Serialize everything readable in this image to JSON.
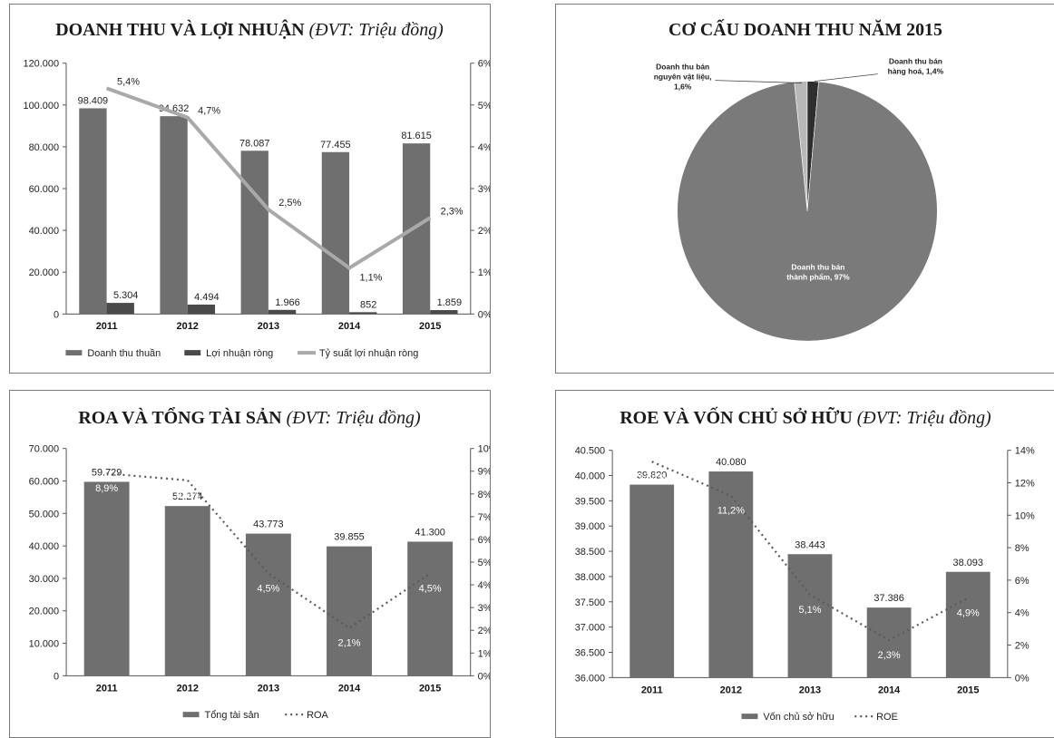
{
  "colors": {
    "bar_main": "#6f6f6f",
    "bar_secondary": "#4a4a4a",
    "line_light": "#a9a9a9",
    "dotted": "#5a5a5a",
    "pie_main": "#7a7a7a",
    "pie_slice1": "#b8b8b8",
    "pie_slice2": "#2e2e2e"
  },
  "chart_data": [
    {
      "id": "revenue_profit",
      "type": "bar",
      "title": "DOANH THU VÀ LỢI NHUẬN",
      "title_unit": "(ĐVT: Triệu đồng)",
      "categories": [
        "2011",
        "2012",
        "2013",
        "2014",
        "2015"
      ],
      "left_ticks": [
        "0",
        "20.000",
        "40.000",
        "60.000",
        "80.000",
        "100.000",
        "120.000"
      ],
      "right_ticks": [
        "0%",
        "1%",
        "2%",
        "3%",
        "4%",
        "5%",
        "6%"
      ],
      "ylim": [
        0,
        120000
      ],
      "y2lim": [
        0,
        6
      ],
      "series": [
        {
          "name": "Doanh thu thuần",
          "kind": "bar",
          "values": [
            98409,
            94632,
            78087,
            77455,
            81615
          ],
          "labels": [
            "98.409",
            "94.632",
            "78.087",
            "77.455",
            "81.615"
          ]
        },
        {
          "name": "Lợi nhuận ròng",
          "kind": "bar",
          "values": [
            5304,
            4494,
            1966,
            852,
            1859
          ],
          "labels": [
            "5.304",
            "4.494",
            "1.966",
            "852",
            "1.859"
          ]
        },
        {
          "name": "Tỷ suất lợi nhuận ròng",
          "kind": "line",
          "axis": "right",
          "values": [
            5.4,
            4.7,
            2.5,
            1.1,
            2.3
          ],
          "labels": [
            "5,4%",
            "4,7%",
            "2,5%",
            "1,1%",
            "2,3%"
          ]
        }
      ],
      "legend_position": "bottom",
      "grid": false
    },
    {
      "id": "revenue_structure",
      "type": "pie",
      "title": "CƠ CẤU DOANH THU NĂM 2015",
      "slices": [
        {
          "name": "Doanh thu bán thành phẩm",
          "value": 97,
          "label": "97%"
        },
        {
          "name": "Doanh thu bán nguyên vật liệu",
          "value": 1.6,
          "label": "1,6%"
        },
        {
          "name": "Doanh thu bán hàng hoá",
          "value": 1.4,
          "label": "1,4%"
        }
      ],
      "label_texts": {
        "main_line1": "Doanh thu bán",
        "main_line2": "thành phẩm, 97%",
        "s1_line1": "Doanh thu bán",
        "s1_line2": "nguyên vật liệu,",
        "s1_line3": "1,6%",
        "s2_line1": "Doanh thu bán",
        "s2_line2": "hàng hoá, 1,4%"
      }
    },
    {
      "id": "roa_assets",
      "type": "bar",
      "title": "ROA VÀ TỔNG TÀI SẢN",
      "title_unit": "(ĐVT: Triệu đồng)",
      "categories": [
        "2011",
        "2012",
        "2013",
        "2014",
        "2015"
      ],
      "left_ticks": [
        "0",
        "10.000",
        "20.000",
        "30.000",
        "40.000",
        "50.000",
        "60.000",
        "70.000"
      ],
      "right_ticks": [
        "0%",
        "1%",
        "2%",
        "3%",
        "4%",
        "5%",
        "6%",
        "7%",
        "8%",
        "9%",
        "10%"
      ],
      "ylim": [
        0,
        70000
      ],
      "y2lim": [
        0,
        10
      ],
      "series": [
        {
          "name": "Tổng tài sản",
          "kind": "bar",
          "values": [
            59729,
            52274,
            43773,
            39855,
            41300
          ],
          "labels": [
            "59.729",
            "52.274",
            "43.773",
            "39.855",
            "41.300"
          ]
        },
        {
          "name": "ROA",
          "kind": "dotted",
          "axis": "right",
          "values": [
            8.9,
            8.6,
            4.5,
            2.1,
            4.5
          ],
          "labels": [
            "8,9%",
            "8,6%",
            "4,5%",
            "2,1%",
            "4,5%"
          ]
        }
      ],
      "legend_position": "bottom",
      "grid": false
    },
    {
      "id": "roe_equity",
      "type": "bar",
      "title": "ROE VÀ VỐN CHỦ SỞ HỮU",
      "title_unit": "(ĐVT: Triệu đồng)",
      "categories": [
        "2011",
        "2012",
        "2013",
        "2014",
        "2015"
      ],
      "left_ticks": [
        "36.000",
        "36.500",
        "37.000",
        "37.500",
        "38.000",
        "38.500",
        "39.000",
        "39.500",
        "40.000",
        "40.500"
      ],
      "right_ticks": [
        "0%",
        "2%",
        "4%",
        "6%",
        "8%",
        "10%",
        "12%",
        "14%"
      ],
      "ylim": [
        36000,
        40500
      ],
      "y2lim": [
        0,
        14
      ],
      "series": [
        {
          "name": "Vốn chủ sở hữu",
          "kind": "bar",
          "values": [
            39820,
            40080,
            38443,
            37386,
            38093
          ],
          "labels": [
            "39.820",
            "40.080",
            "38.443",
            "37.386",
            "38.093"
          ]
        },
        {
          "name": "ROE",
          "kind": "dotted",
          "axis": "right",
          "values": [
            13.3,
            11.2,
            5.1,
            2.3,
            4.9
          ],
          "labels": [
            "13,3%",
            "11,2%",
            "5,1%",
            "2,3%",
            "4,9%"
          ]
        }
      ],
      "legend_position": "bottom",
      "grid": false
    }
  ]
}
